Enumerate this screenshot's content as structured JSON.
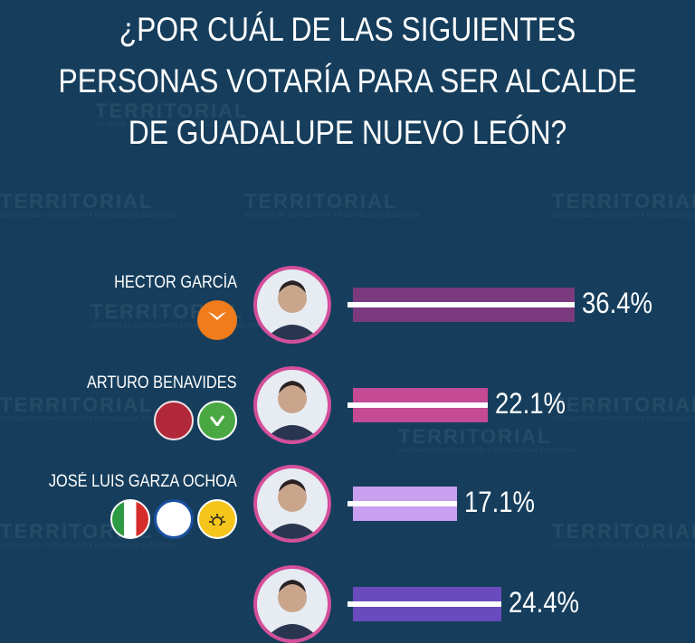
{
  "title_lines": [
    "¿POR CUÁL DE LAS SIGUIENTES",
    "PERSONAS VOTARÍA PARA SER ALCALDE",
    "DE GUADALUPE NUEVO LEÓN?"
  ],
  "watermark": {
    "text": "TERRITORIAL",
    "sub": "SISTEMAS DE CARTOGRAFÍA Y RENTABILIDAD ELECTORAL"
  },
  "parties": {
    "mc": {
      "label": "MOVIMIENTO CIUDADANO",
      "color": "#f07c1c"
    },
    "morena": {
      "label": "morena",
      "color": "#b0283a"
    },
    "verde": {
      "label": "VERDE",
      "color": "#4aa843"
    },
    "pri": {
      "label": "PRI",
      "color": "#d62b2b"
    },
    "pan": {
      "label": "PAN",
      "color": "#1b4fa0"
    },
    "prd": {
      "label": "PRD",
      "color": "#f5c51b"
    }
  },
  "chart_data": {
    "type": "bar",
    "orientation": "horizontal",
    "title": "¿POR CUÁL DE LAS SIGUIENTES PERSONAS VOTARÍA PARA SER ALCALDE DE GUADALUPE NUEVO LEÓN?",
    "categories": [
      "HECTOR GARCÍA",
      "ARTURO BENAVIDES",
      "JOSÉ LUIS GARZA OCHOA",
      ""
    ],
    "values": [
      36.4,
      22.1,
      17.1,
      24.4
    ],
    "labels": [
      "36.4%",
      "22.1%",
      "17.1%",
      "24.4%"
    ],
    "colors": [
      "#7c3a7e",
      "#c34a93",
      "#c99ff0",
      "#6a4bbd"
    ],
    "xlim": [
      0,
      36.4
    ],
    "grid": false,
    "legend": "none"
  },
  "candidates": [
    {
      "name": "HECTOR GARCÍA",
      "parties": [
        "mc"
      ]
    },
    {
      "name": "ARTURO BENAVIDES",
      "parties": [
        "morena",
        "verde"
      ]
    },
    {
      "name": "JOSÉ LUIS GARZA OCHOA",
      "parties": [
        "pri",
        "pan",
        "prd"
      ]
    },
    {
      "name": "",
      "parties": []
    }
  ],
  "colors": {
    "background": "#163e5c",
    "ring": "#d44f9a"
  }
}
